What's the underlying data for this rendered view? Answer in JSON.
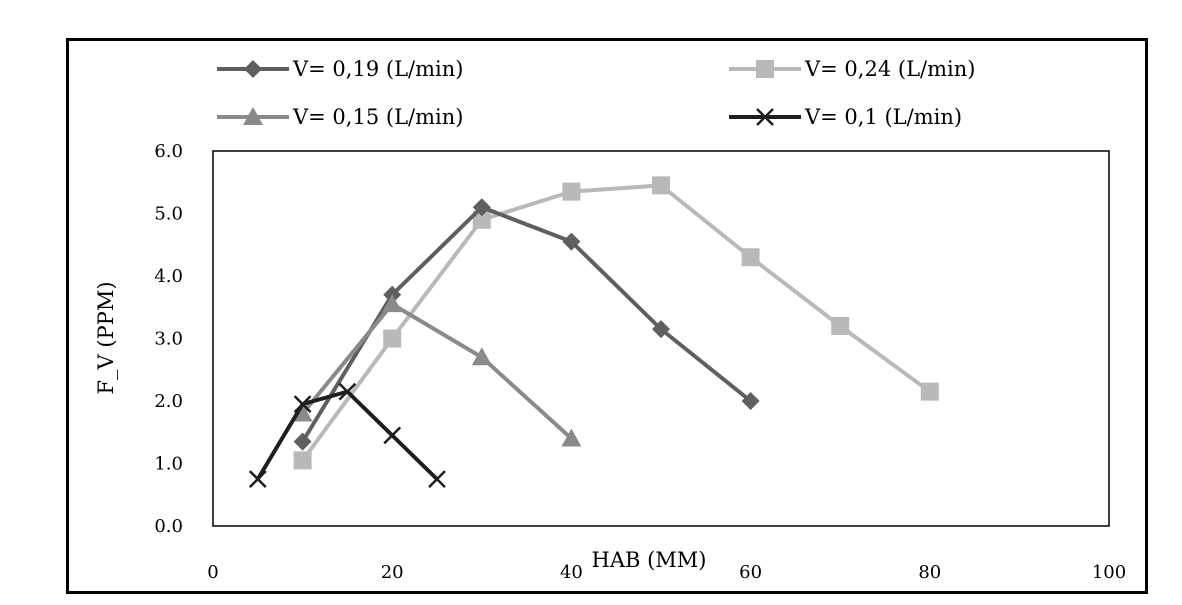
{
  "chart_data": {
    "type": "line",
    "title": "",
    "xlabel": "HAB (MM)",
    "ylabel": "F_V (PPM)",
    "xlim": [
      0,
      100
    ],
    "ylim": [
      0,
      6
    ],
    "x_ticks": [
      "0",
      "20",
      "40",
      "60",
      "80",
      "100"
    ],
    "y_ticks": [
      "0.0",
      "1.0",
      "2.0",
      "3.0",
      "4.0",
      "5.0",
      "6.0"
    ],
    "grid": false,
    "legend_position": "top",
    "series": [
      {
        "name": "V= 0,19 (L/min)",
        "marker": "diamond",
        "color": "#5f5f5f",
        "points": [
          [
            10,
            1.35
          ],
          [
            20,
            3.7
          ],
          [
            30,
            5.1
          ],
          [
            40,
            4.55
          ],
          [
            50,
            3.15
          ],
          [
            60,
            2.0
          ]
        ]
      },
      {
        "name": "V= 0,24 (L/min)",
        "marker": "square",
        "color": "#b9b9b9",
        "points": [
          [
            10,
            1.05
          ],
          [
            20,
            3.0
          ],
          [
            30,
            4.9
          ],
          [
            40,
            5.35
          ],
          [
            50,
            5.45
          ],
          [
            60,
            4.3
          ],
          [
            70,
            3.2
          ],
          [
            80,
            2.15
          ]
        ]
      },
      {
        "name": "V= 0,15 (L/min)",
        "marker": "triangle",
        "color": "#8a8a8a",
        "points": [
          [
            10,
            1.8
          ],
          [
            20,
            3.55
          ],
          [
            30,
            2.7
          ],
          [
            40,
            1.4
          ]
        ]
      },
      {
        "name": "V= 0,1 (L/min)",
        "marker": "x",
        "color": "#1e1e1e",
        "points": [
          [
            5,
            0.75
          ],
          [
            10,
            1.95
          ],
          [
            15,
            2.15
          ],
          [
            20,
            1.45
          ],
          [
            25,
            0.75
          ]
        ]
      }
    ]
  }
}
